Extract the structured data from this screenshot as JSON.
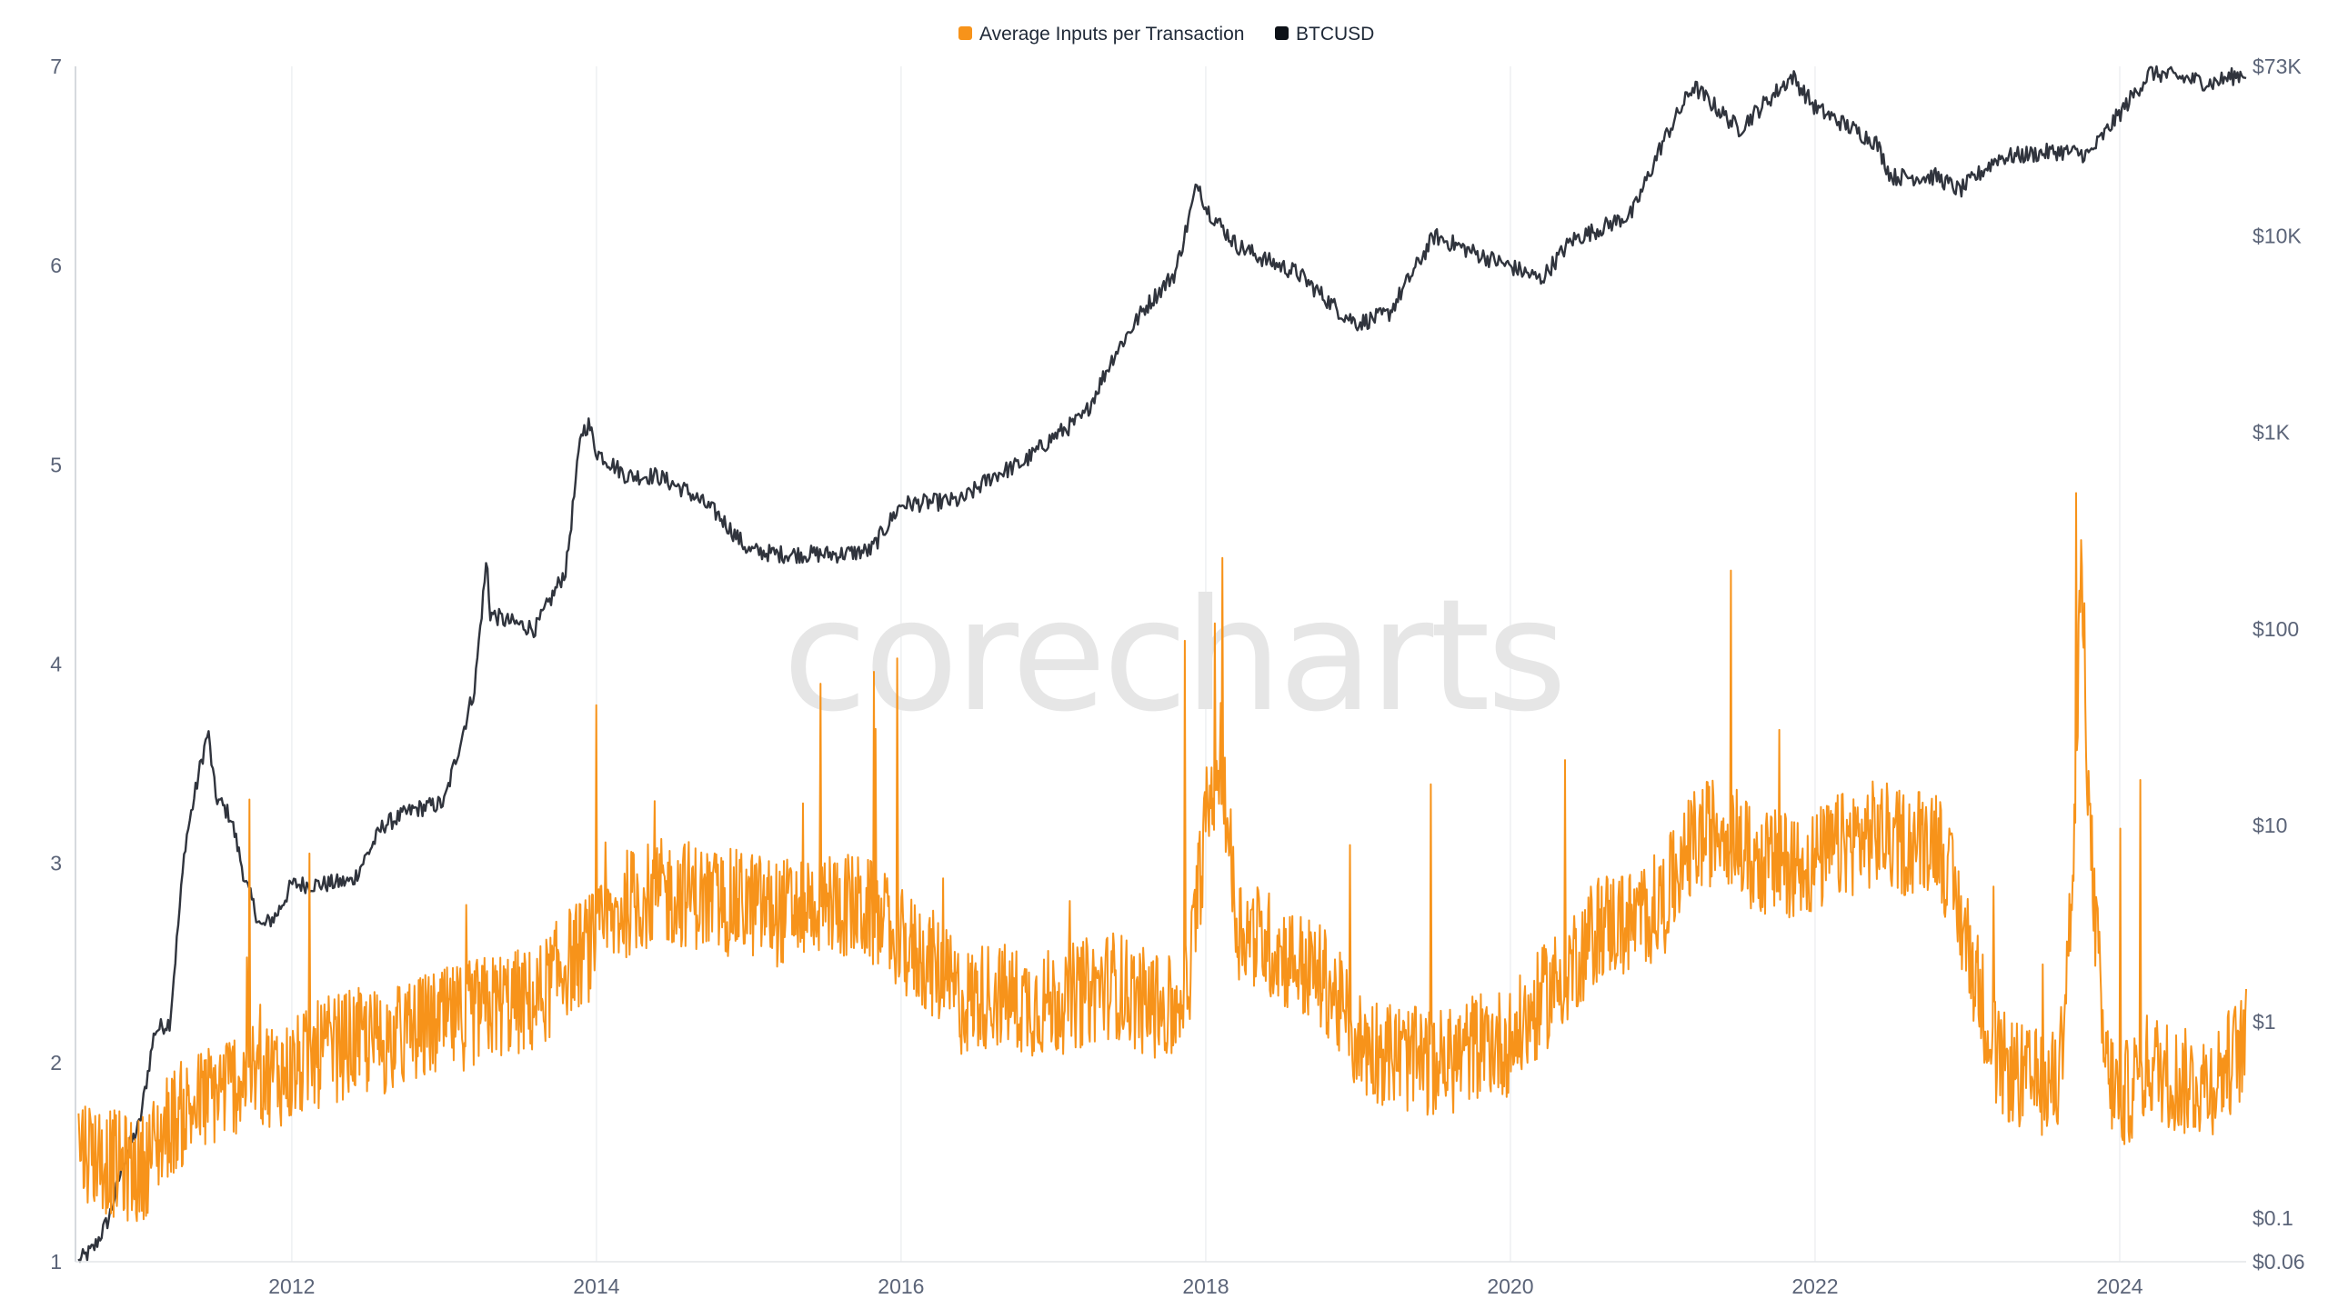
{
  "chart_data": {
    "type": "line",
    "watermark": "corecharts",
    "legend": {
      "position": "top-center",
      "items": [
        {
          "label": "Average Inputs per Transaction",
          "color": "#f7931a"
        },
        {
          "label": "BTCUSD",
          "color": "#0d1117"
        }
      ]
    },
    "x_axis": {
      "ticks": [
        "2012",
        "2014",
        "2016",
        "2018",
        "2020",
        "2022",
        "2024"
      ],
      "range": [
        2010.58,
        2024.83
      ],
      "grid": true
    },
    "y_axis_left": {
      "ticks": [
        "1",
        "2",
        "3",
        "4",
        "5",
        "6",
        "7"
      ],
      "range": [
        1,
        7
      ],
      "grid": false
    },
    "y_axis_right": {
      "scale": "log",
      "ticks": [
        "$73K",
        "$10K",
        "$1K",
        "$100",
        "$10",
        "$1",
        "$0.1",
        "$0.06"
      ],
      "tick_values": [
        73000,
        10000,
        1000,
        100,
        10,
        1,
        0.1,
        0.06
      ],
      "range": [
        0.06,
        73000
      ]
    },
    "series": [
      {
        "name": "Average Inputs per Transaction",
        "axis": "left",
        "color": "#f7931a",
        "x": [
          2010.6,
          2010.8,
          2011.0,
          2011.2,
          2011.4,
          2011.6,
          2011.8,
          2012.0,
          2012.2,
          2012.4,
          2012.6,
          2012.8,
          2013.0,
          2013.2,
          2013.4,
          2013.6,
          2013.8,
          2014.0,
          2014.2,
          2014.4,
          2014.6,
          2014.8,
          2015.0,
          2015.2,
          2015.4,
          2015.6,
          2015.8,
          2016.0,
          2016.2,
          2016.4,
          2016.6,
          2016.8,
          2017.0,
          2017.2,
          2017.4,
          2017.6,
          2017.8,
          2017.9,
          2018.0,
          2018.1,
          2018.2,
          2018.4,
          2018.6,
          2018.8,
          2019.0,
          2019.2,
          2019.4,
          2019.6,
          2019.8,
          2020.0,
          2020.2,
          2020.4,
          2020.6,
          2020.8,
          2021.0,
          2021.2,
          2021.4,
          2021.6,
          2021.8,
          2022.0,
          2022.2,
          2022.4,
          2022.6,
          2022.8,
          2023.0,
          2023.2,
          2023.4,
          2023.6,
          2023.7,
          2023.75,
          2023.8,
          2023.9,
          2024.0,
          2024.2,
          2024.4,
          2024.6,
          2024.83
        ],
        "values": [
          1.6,
          1.5,
          1.45,
          1.7,
          1.8,
          1.9,
          1.95,
          1.95,
          2.05,
          2.1,
          2.1,
          2.15,
          2.2,
          2.25,
          2.3,
          2.3,
          2.5,
          2.6,
          2.8,
          2.85,
          2.85,
          2.8,
          2.8,
          2.75,
          2.8,
          2.8,
          2.75,
          2.6,
          2.5,
          2.3,
          2.35,
          2.3,
          2.3,
          2.35,
          2.4,
          2.3,
          2.25,
          2.5,
          3.2,
          3.6,
          2.7,
          2.6,
          2.5,
          2.4,
          2.1,
          2.05,
          2.0,
          2.0,
          2.1,
          2.1,
          2.3,
          2.5,
          2.7,
          2.7,
          2.8,
          3.1,
          3.2,
          3.0,
          3.0,
          3.0,
          3.1,
          3.15,
          3.1,
          3.15,
          2.6,
          2.0,
          1.9,
          1.9,
          3.0,
          4.6,
          3.2,
          2.0,
          1.8,
          2.0,
          1.9,
          1.9,
          2.1
        ]
      },
      {
        "name": "BTCUSD",
        "axis": "right",
        "color": "#30343d",
        "x": [
          2010.6,
          2010.7,
          2010.8,
          2010.9,
          2011.0,
          2011.1,
          2011.2,
          2011.3,
          2011.4,
          2011.45,
          2011.5,
          2011.6,
          2011.7,
          2011.8,
          2011.9,
          2012.0,
          2012.2,
          2012.4,
          2012.6,
          2012.8,
          2013.0,
          2013.2,
          2013.28,
          2013.3,
          2013.4,
          2013.6,
          2013.8,
          2013.9,
          2013.95,
          2014.0,
          2014.2,
          2014.4,
          2014.6,
          2014.8,
          2015.0,
          2015.2,
          2015.4,
          2015.6,
          2015.8,
          2016.0,
          2016.4,
          2016.6,
          2016.8,
          2017.0,
          2017.2,
          2017.4,
          2017.6,
          2017.8,
          2017.95,
          2018.0,
          2018.2,
          2018.4,
          2018.6,
          2018.9,
          2019.0,
          2019.2,
          2019.5,
          2019.8,
          2020.0,
          2020.2,
          2020.4,
          2020.6,
          2020.8,
          2021.0,
          2021.2,
          2021.5,
          2021.85,
          2022.0,
          2022.4,
          2022.5,
          2022.8,
          2022.95,
          2023.2,
          2023.6,
          2023.8,
          2024.0,
          2024.2,
          2024.4,
          2024.6,
          2024.83
        ],
        "values": [
          0.06,
          0.07,
          0.1,
          0.2,
          0.3,
          0.9,
          1.0,
          8.0,
          20.0,
          30.0,
          14.0,
          11.0,
          5.0,
          3.0,
          3.5,
          5.0,
          5.0,
          5.2,
          10.0,
          12.0,
          13.0,
          50.0,
          230.0,
          120.0,
          110.0,
          100.0,
          200.0,
          1000.0,
          1100.0,
          800.0,
          600.0,
          600.0,
          500.0,
          380.0,
          250.0,
          240.0,
          240.0,
          240.0,
          250.0,
          430.0,
          450.0,
          600.0,
          700.0,
          950.0,
          1200.0,
          2500.0,
          4300.0,
          6500.0,
          19000.0,
          14000.0,
          9000.0,
          7500.0,
          6500.0,
          4000.0,
          3600.0,
          4000.0,
          10000.0,
          8000.0,
          7000.0,
          6000.0,
          9500.0,
          11000.0,
          13000.0,
          30000.0,
          58000.0,
          35000.0,
          65000.0,
          45000.0,
          30000.0,
          20000.0,
          20000.0,
          17000.0,
          25000.0,
          27000.0,
          26000.0,
          42000.0,
          68000.0,
          64000.0,
          60000.0,
          68000.0
        ]
      }
    ]
  }
}
